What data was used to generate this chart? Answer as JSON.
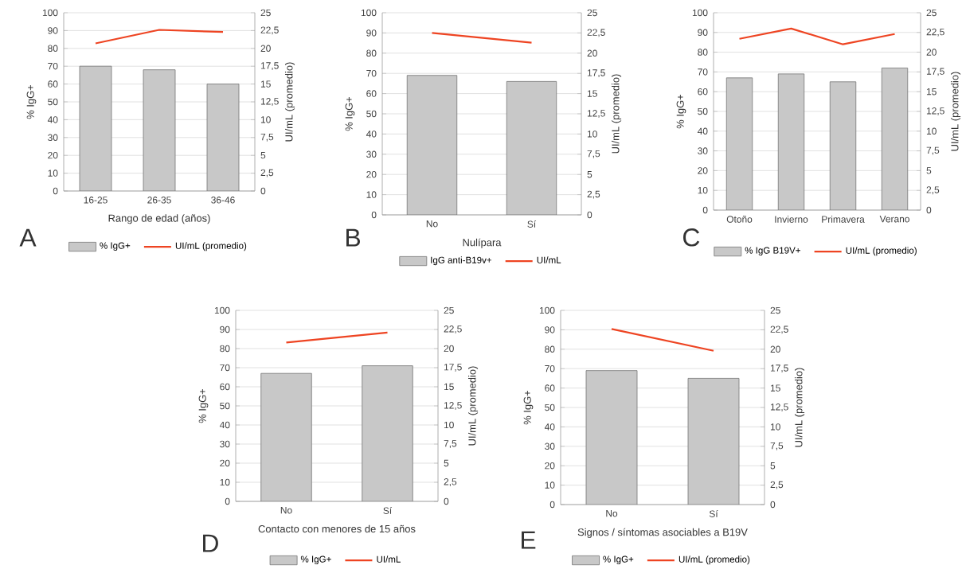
{
  "chart_data": [
    {
      "type": "bar",
      "categories": [
        "16-25",
        "26-35",
        "36-46"
      ],
      "xlabel": "Rango de edad (años)",
      "ylabel": "% IgG+",
      "y2label": "UI/mL (promedio)",
      "series": [
        {
          "name": "% IgG+",
          "color": "#c8c8c8",
          "values": [
            70,
            68,
            60
          ]
        },
        {
          "name": "UI/mL (promedio)",
          "type": "line",
          "axis": "y2",
          "color": "#ee4422",
          "values": [
            20.7,
            22.6,
            22.3
          ]
        }
      ],
      "ylim": [
        0,
        100
      ],
      "yticks": [
        0,
        10,
        20,
        30,
        40,
        50,
        60,
        70,
        80,
        90,
        100
      ],
      "y2lim": [
        0,
        25
      ],
      "y2ticks": [
        0,
        {
          "value": 2.5,
          "label": "2,5"
        },
        5,
        {
          "value": 7.5,
          "label": "7,5"
        },
        10,
        {
          "value": 12.5,
          "label": "12,5"
        },
        15,
        {
          "value": 17.5,
          "label": "17,5"
        },
        20,
        {
          "value": 22.5,
          "label": "22,5"
        },
        25
      ],
      "grid": "y",
      "legend": "bottom",
      "annotations": [
        "A"
      ]
    },
    {
      "type": "bar",
      "categories": [
        "No",
        "Sí"
      ],
      "xlabel": "Nulípara",
      "ylabel": "% IgG+",
      "y2label": "UI/mL (promedio)",
      "series": [
        {
          "name": "IgG anti-B19v+",
          "color": "#c8c8c8",
          "values": [
            69,
            66
          ]
        },
        {
          "name": "UI/mL",
          "type": "line",
          "axis": "y2",
          "color": "#ee4422",
          "values": [
            22.5,
            21.3
          ]
        }
      ],
      "ylim": [
        0,
        100
      ],
      "yticks": [
        0,
        10,
        20,
        30,
        40,
        50,
        60,
        70,
        80,
        90,
        100
      ],
      "y2lim": [
        0,
        25
      ],
      "y2ticks": [
        0,
        {
          "value": 2.5,
          "label": "2,5"
        },
        5,
        {
          "value": 7.5,
          "label": "7,5"
        },
        10,
        {
          "value": 12.5,
          "label": "12,5"
        },
        15,
        {
          "value": 17.5,
          "label": "17,5"
        },
        20,
        {
          "value": 22.5,
          "label": "22,5"
        },
        25
      ],
      "grid": "y",
      "legend": "bottom",
      "annotations": [
        "B"
      ]
    },
    {
      "type": "bar",
      "categories": [
        "Otoño",
        "Invierno",
        "Primavera",
        "Verano"
      ],
      "ylabel": "% IgG+",
      "y2label": "UI/mL (promedio)",
      "series": [
        {
          "name": "% IgG B19V+",
          "color": "#c8c8c8",
          "values": [
            67,
            69,
            65,
            72
          ]
        },
        {
          "name": "UI/mL (promedio)",
          "type": "line",
          "axis": "y2",
          "color": "#ee4422",
          "values": [
            21.7,
            23,
            21,
            22.3
          ]
        }
      ],
      "ylim": [
        0,
        100
      ],
      "yticks": [
        0,
        10,
        20,
        30,
        40,
        50,
        60,
        70,
        80,
        90,
        100
      ],
      "y2lim": [
        0,
        25
      ],
      "y2ticks": [
        0,
        {
          "value": 2.5,
          "label": "2,5"
        },
        5,
        {
          "value": 7.5,
          "label": "7,5"
        },
        10,
        {
          "value": 12.5,
          "label": "12,5"
        },
        15,
        {
          "value": 17.5,
          "label": "17,5"
        },
        20,
        {
          "value": 22.5,
          "label": "22,5"
        },
        25
      ],
      "grid": "y",
      "legend": "bottom",
      "annotations": [
        "C"
      ]
    },
    {
      "type": "bar",
      "categories": [
        "No",
        "Sí"
      ],
      "xlabel": "Contacto con menores de 15 años",
      "ylabel": "% IgG+",
      "y2label": "UI/mL (promedio)",
      "series": [
        {
          "name": "% IgG+",
          "color": "#c8c8c8",
          "values": [
            67,
            71
          ]
        },
        {
          "name": "UI/mL",
          "type": "line",
          "axis": "y2",
          "color": "#ee4422",
          "values": [
            20.8,
            22.1
          ]
        }
      ],
      "ylim": [
        0,
        100
      ],
      "yticks": [
        0,
        10,
        20,
        30,
        40,
        50,
        60,
        70,
        80,
        90,
        100
      ],
      "y2lim": [
        0,
        25
      ],
      "y2ticks": [
        0,
        {
          "value": 2.5,
          "label": "2,5"
        },
        5,
        {
          "value": 7.5,
          "label": "7,5"
        },
        10,
        {
          "value": 12.5,
          "label": "12,5"
        },
        15,
        {
          "value": 17.5,
          "label": "17,5"
        },
        20,
        {
          "value": 22.5,
          "label": "22,5"
        },
        25
      ],
      "grid": "y",
      "legend": "bottom",
      "annotations": [
        "D"
      ]
    },
    {
      "type": "bar",
      "categories": [
        "No",
        "Sí"
      ],
      "xlabel": "Signos / síntomas asociables a B19V",
      "ylabel": "% IgG+",
      "y2label": "UI/mL (promedio)",
      "series": [
        {
          "name": "% IgG+",
          "color": "#c8c8c8",
          "values": [
            69,
            65
          ]
        },
        {
          "name": "UI/mL (promedio)",
          "type": "line",
          "axis": "y2",
          "color": "#ee4422",
          "values": [
            22.6,
            19.8
          ]
        }
      ],
      "ylim": [
        0,
        100
      ],
      "yticks": [
        0,
        10,
        20,
        30,
        40,
        50,
        60,
        70,
        80,
        90,
        100
      ],
      "y2lim": [
        0,
        25
      ],
      "y2ticks": [
        0,
        {
          "value": 2.5,
          "label": "2,5"
        },
        5,
        {
          "value": 7.5,
          "label": "7,5"
        },
        10,
        {
          "value": 12.5,
          "label": "12,5"
        },
        15,
        {
          "value": 17.5,
          "label": "17,5"
        },
        20,
        {
          "value": 22.5,
          "label": "22,5"
        },
        25
      ],
      "grid": "y",
      "legend": "bottom",
      "annotations": [
        "E"
      ]
    }
  ]
}
